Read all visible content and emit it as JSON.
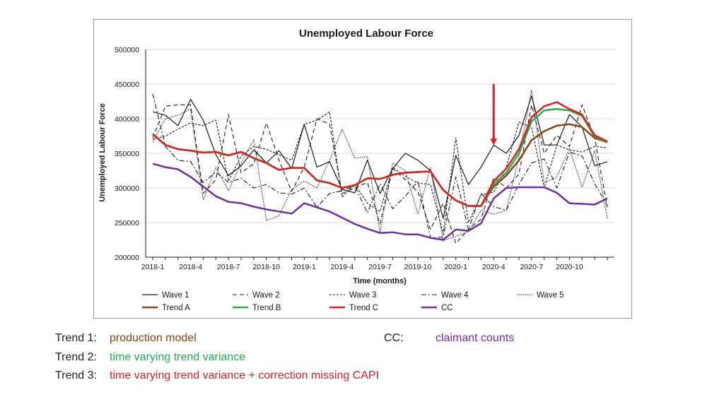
{
  "chart_data": {
    "type": "line",
    "title": "Unemployed Labour Force",
    "xlabel": "Time (months)",
    "ylabel": "Unemployed Labour Force",
    "ylim": [
      200000,
      500000
    ],
    "yticks": [
      200000,
      250000,
      300000,
      350000,
      400000,
      450000,
      500000
    ],
    "ytick_labels": [
      "200000",
      "250000",
      "300000",
      "350000",
      "400000",
      "450000",
      "500000"
    ],
    "xticks": [
      {
        "index": 0,
        "label": "2018-1"
      },
      {
        "index": 3,
        "label": "2018-4"
      },
      {
        "index": 6,
        "label": "2018-7"
      },
      {
        "index": 9,
        "label": "2018-10"
      },
      {
        "index": 12,
        "label": "2019-1"
      },
      {
        "index": 15,
        "label": "2019-4"
      },
      {
        "index": 18,
        "label": "2019-7"
      },
      {
        "index": 21,
        "label": "2019-10"
      },
      {
        "index": 24,
        "label": "2020-1"
      },
      {
        "index": 27,
        "label": "2020-4"
      },
      {
        "index": 30,
        "label": "2020-7"
      },
      {
        "index": 33,
        "label": "2020-10"
      }
    ],
    "grid": true,
    "annotation": {
      "type": "arrow",
      "color": "#e02020",
      "index": 27,
      "from_value": 450000,
      "to_value": 362000
    },
    "series": [
      {
        "name": "Wave 1",
        "color": "#1a1a1a",
        "dash": "",
        "width": 1.2,
        "values": [
          410000,
          405000,
          390000,
          428000,
          398000,
          348000,
          318000,
          332000,
          355000,
          336000,
          354000,
          328000,
          392000,
          330000,
          338000,
          298000,
          293000,
          340000,
          292000,
          328000,
          350000,
          340000,
          325000,
          256000,
          347000,
          305000,
          330000,
          362000,
          350000,
          376000,
          433000,
          362000,
          362000,
          406000,
          388000,
          332000,
          338000
        ]
      },
      {
        "name": "Wave 2",
        "color": "#1a1a1a",
        "dash": "6 4",
        "width": 1.1,
        "values": [
          372000,
          418000,
          420000,
          420000,
          292000,
          312000,
          406000,
          322000,
          335000,
          394000,
          340000,
          295000,
          330000,
          400000,
          392000,
          292000,
          300000,
          308000,
          248000,
          328000,
          312000,
          294000,
          240000,
          278000,
          220000,
          240000,
          255000,
          315000,
          300000,
          320000,
          420000,
          350000,
          376000,
          360000,
          420000,
          372000,
          272000
        ]
      },
      {
        "name": "Wave 3",
        "color": "#1a1a1a",
        "dash": "3 2",
        "width": 1.1,
        "values": [
          370000,
          375000,
          385000,
          394000,
          390000,
          398000,
          310000,
          346000,
          360000,
          356000,
          348000,
          340000,
          392000,
          398000,
          410000,
          287000,
          305000,
          278000,
          266000,
          330000,
          317000,
          307000,
          305000,
          234000,
          372000,
          250000,
          290000,
          294000,
          330000,
          395000,
          388000,
          300000,
          362000,
          355000,
          352000,
          360000,
          358000
        ]
      },
      {
        "name": "Wave 4",
        "color": "#1a1a1a",
        "dash": "7 3 2 3",
        "width": 1.1,
        "values": [
          436000,
          360000,
          340000,
          338000,
          308000,
          323000,
          308000,
          314000,
          300000,
          305000,
          293000,
          291000,
          300000,
          272000,
          292000,
          296000,
          303000,
          264000,
          306000,
          270000,
          288000,
          310000,
          228000,
          229000,
          316000,
          240000,
          292000,
          273000,
          268000,
          305000,
          336000,
          342000,
          300000,
          352000,
          346000,
          306000,
          275000
        ]
      },
      {
        "name": "Wave 5",
        "color": "#1a1a1a",
        "dash": "1.5 1.5",
        "width": 1.0,
        "values": [
          366000,
          400000,
          405000,
          414000,
          283000,
          330000,
          296000,
          336000,
          370000,
          253000,
          260000,
          298000,
          310000,
          300000,
          340000,
          385000,
          343000,
          345000,
          236000,
          336000,
          325000,
          262000,
          330000,
          224000,
          230000,
          237000,
          268000,
          262000,
          268000,
          345000,
          441000,
          307000,
          316000,
          357000,
          301000,
          354000,
          256000
        ]
      },
      {
        "name": "Trend A",
        "color": "#8b4513",
        "dash": "",
        "width": 2.5,
        "values": [
          378000,
          362000,
          356000,
          354000,
          351000,
          352000,
          347000,
          352000,
          343000,
          336000,
          326000,
          329000,
          329000,
          311000,
          307000,
          300000,
          304000,
          314000,
          313000,
          319000,
          322000,
          323000,
          324000,
          297000,
          282000,
          274000,
          274000,
          302000,
          318000,
          340000,
          369000,
          382000,
          390000,
          392000,
          388000,
          372000,
          366000
        ]
      },
      {
        "name": "Trend B",
        "color": "#22b14c",
        "dash": "",
        "width": 2.5,
        "values": [
          378000,
          362000,
          356000,
          354000,
          351000,
          352000,
          347000,
          352000,
          343000,
          336000,
          326000,
          329000,
          329000,
          311000,
          307000,
          300000,
          304000,
          314000,
          313000,
          319000,
          322000,
          323000,
          324000,
          297000,
          282000,
          274000,
          274000,
          306000,
          322000,
          350000,
          396000,
          412000,
          414000,
          412000,
          404000,
          374000,
          366000
        ]
      },
      {
        "name": "Trend C",
        "color": "#e02020",
        "dash": "",
        "width": 2.5,
        "values": [
          378000,
          362000,
          356000,
          354000,
          351000,
          352000,
          347000,
          352000,
          343000,
          336000,
          326000,
          329000,
          329000,
          311000,
          307000,
          300000,
          304000,
          314000,
          313000,
          319000,
          322000,
          323000,
          324000,
          297000,
          282000,
          274000,
          274000,
          310000,
          328000,
          356000,
          402000,
          418000,
          424000,
          414000,
          406000,
          376000,
          367000
        ]
      },
      {
        "name": "CC",
        "color": "#7030a0",
        "dash": "",
        "width": 2.5,
        "values": [
          335000,
          330000,
          327000,
          316000,
          302000,
          288000,
          280000,
          278000,
          273000,
          269000,
          266000,
          263000,
          278000,
          272000,
          266000,
          257000,
          248000,
          241000,
          235000,
          236000,
          233000,
          233000,
          228000,
          225000,
          240000,
          238000,
          249000,
          285000,
          300000,
          301000,
          301000,
          301000,
          293000,
          278000,
          277000,
          276000,
          285000
        ]
      }
    ]
  },
  "legend": {
    "entries": [
      "Wave 1",
      "Wave 2",
      "Wave 3",
      "Wave 4",
      "Wave 5",
      "Trend A",
      "Trend B",
      "Trend C",
      "CC"
    ]
  },
  "captions": {
    "trend1_label": "Trend 1:",
    "trend1_text": "production model",
    "trend1_color": "#8b4513",
    "trend2_label": "Trend 2:",
    "trend2_text": "time varying trend variance",
    "trend2_color": "#22b14c",
    "trend3_label": "Trend 3:",
    "trend3_text": "time varying trend variance + correction missing CAPI",
    "trend3_color": "#e02020",
    "cc_label": "CC:",
    "cc_text": "claimant counts",
    "cc_color": "#7030a0"
  }
}
